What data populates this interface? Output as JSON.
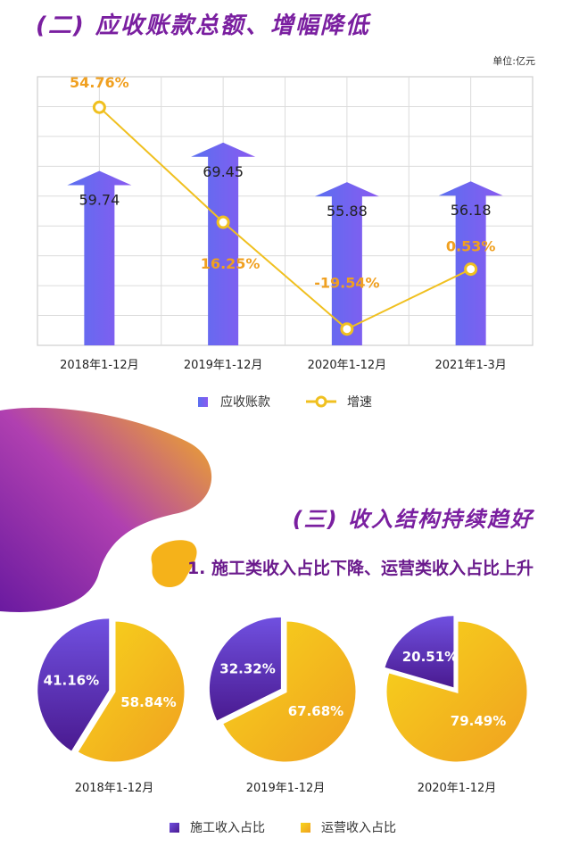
{
  "section2": {
    "title": "(二) 应收账款总额、增幅降低",
    "unit": "单位:亿元"
  },
  "section3": {
    "title": "(三) 收入结构持续趋好",
    "subtitle": "1. 施工类收入占比下降、运营类收入占比上升"
  },
  "colors": {
    "purple_dark": "#5a1aa0",
    "blue": "#4a7cf0",
    "gold": "#f5b21a",
    "yellow": "#f7d51c",
    "line": "#f0c020",
    "growth_text": "#f0a020"
  },
  "chart_data": [
    {
      "type": "bar",
      "categories": [
        "2018年1-12月",
        "2019年1-12月",
        "2020年1-12月",
        "2021年1-3月"
      ],
      "series": [
        {
          "name": "应收账款",
          "values": [
            59.74,
            69.45,
            55.88,
            56.18
          ],
          "labels": [
            "59.74",
            "69.45",
            "55.88",
            "56.18"
          ]
        },
        {
          "name": "增速",
          "type": "line",
          "values": [
            54.76,
            16.25,
            -19.54,
            0.53
          ],
          "labels": [
            "54.76%",
            "16.25%",
            "-19.54%",
            "0.53%"
          ]
        }
      ],
      "grid": true,
      "legend": "bottom"
    },
    {
      "type": "pie",
      "legend_labels": [
        "施工收入占比",
        "运营收入占比"
      ],
      "pies": [
        {
          "label": "2018年1-12月",
          "values": [
            41.16,
            58.84
          ],
          "texts": [
            "41.16%",
            "58.84%"
          ]
        },
        {
          "label": "2019年1-12月",
          "values": [
            32.32,
            67.68
          ],
          "texts": [
            "32.32%",
            "67.68%"
          ]
        },
        {
          "label": "2020年1-12月",
          "values": [
            20.51,
            79.49
          ],
          "texts": [
            "20.51%",
            "79.49%"
          ]
        }
      ]
    }
  ]
}
